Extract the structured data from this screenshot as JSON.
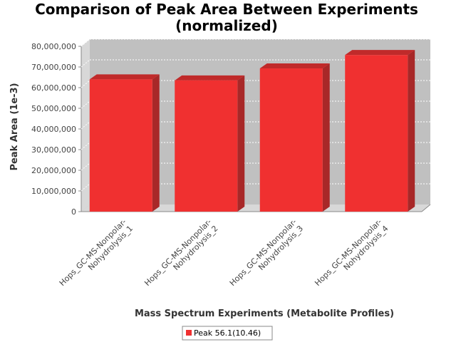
{
  "chart_data": {
    "type": "bar",
    "title_line1": "Comparison of Peak Area Between Experiments",
    "title_line2": "(normalized)",
    "xlabel": "Mass Spectrum Experiments (Metabolite Profiles)",
    "ylabel": "Peak Area (1e-3)",
    "categories": [
      [
        "Hops_GC-MS-Nonpolar-",
        "Nohydrolysis_1"
      ],
      [
        "Hops_GC-MS-Nonpolar-",
        "Nohydrolysis_2"
      ],
      [
        "Hops_GC-MS-Nonpolar-",
        "Nohydrolysis_3"
      ],
      [
        "Hops_GC-MS-Nonpolar-",
        "Nohydrolysis_4"
      ]
    ],
    "series": [
      {
        "name": "Peak 56.1(10.46)",
        "values": [
          64000000,
          63500000,
          69300000,
          75800000
        ]
      }
    ],
    "ylim": [
      0,
      80000000
    ],
    "yticks": [
      0,
      10000000,
      20000000,
      30000000,
      40000000,
      50000000,
      60000000,
      70000000,
      80000000
    ],
    "ytick_labels": [
      "0",
      "10,000,000",
      "20,000,000",
      "30,000,000",
      "40,000,000",
      "50,000,000",
      "60,000,000",
      "70,000,000",
      "80,000,000"
    ],
    "grid": true,
    "legend": "bottom-center",
    "colors": {
      "bar_front": "#f03030",
      "bar_side": "#a82828",
      "bar_top": "#c02a2a",
      "plot_bg": "#c0c0c0",
      "plot_wall": "#d8d8d8"
    }
  }
}
